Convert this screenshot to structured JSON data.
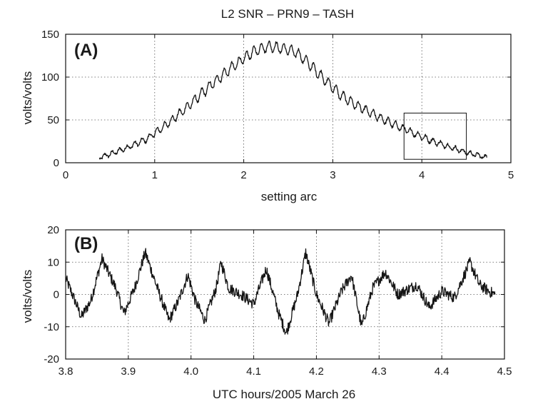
{
  "chart_data": [
    {
      "type": "line",
      "panel_letter": "(A)",
      "title": "L2 SNR – PRN9 – TASH",
      "xlabel": "setting arc",
      "ylabel": "volts/volts",
      "xlim": [
        0,
        5
      ],
      "ylim": [
        0,
        150
      ],
      "xticks": [
        0,
        1,
        2,
        3,
        4,
        5
      ],
      "yticks": [
        0,
        50,
        100,
        150
      ],
      "grid": true,
      "series": [
        {
          "x": [
            0.38,
            0.5,
            0.7,
            0.9,
            1.1,
            1.3,
            1.5,
            1.7,
            1.9,
            2.1,
            2.2,
            2.3,
            2.4,
            2.5,
            2.6,
            2.7,
            2.9,
            3.1,
            3.3,
            3.5,
            3.7,
            3.9,
            4.1,
            4.3,
            4.5,
            4.62,
            4.73
          ],
          "y": [
            6,
            10,
            18,
            27,
            42,
            59,
            78,
            97,
            114,
            129,
            134,
            136,
            134,
            132,
            128,
            119,
            98,
            78,
            65,
            54,
            44,
            35,
            26,
            19,
            12,
            9,
            6
          ]
        }
      ],
      "annotations": [
        {
          "type": "rect",
          "x": [
            3.8,
            4.5
          ],
          "y": [
            4,
            58
          ]
        }
      ]
    },
    {
      "type": "line",
      "panel_letter": "(B)",
      "title": "",
      "xlabel": "UTC hours/2005 March 26",
      "ylabel": "volts/volts",
      "xlim": [
        3.8,
        4.5
      ],
      "ylim": [
        -20,
        20
      ],
      "xticks": [
        3.8,
        3.9,
        4.0,
        4.1,
        4.2,
        4.3,
        4.4,
        4.5
      ],
      "yticks": [
        -20,
        -10,
        0,
        10,
        20
      ],
      "grid": true,
      "series": [
        {
          "x": [
            3.8,
            3.815,
            3.825,
            3.84,
            3.858,
            3.88,
            3.893,
            3.91,
            3.927,
            3.948,
            3.965,
            3.98,
            3.995,
            4.007,
            4.022,
            4.04,
            4.048,
            4.06,
            4.08,
            4.1,
            4.12,
            4.14,
            4.152,
            4.17,
            4.183,
            4.2,
            4.22,
            4.24,
            4.256,
            4.272,
            4.29,
            4.31,
            4.33,
            4.36,
            4.38,
            4.4,
            4.42,
            4.445,
            4.46,
            4.475,
            4.485
          ],
          "y": [
            5,
            -2,
            -7,
            -2,
            11,
            2,
            -6,
            2,
            13,
            1,
            -8,
            -2,
            6,
            -2,
            -8,
            2,
            10,
            2,
            0,
            -3,
            8,
            -6,
            -12,
            0,
            13,
            0,
            -9,
            1,
            6,
            -10,
            2,
            7,
            0,
            3,
            -4,
            1,
            -1,
            10,
            3,
            1,
            0
          ]
        }
      ]
    }
  ]
}
